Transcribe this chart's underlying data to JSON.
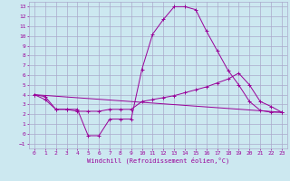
{
  "xlabel": "Windchill (Refroidissement éolien,°C)",
  "background_color": "#cce8f0",
  "grid_color": "#aaaacc",
  "line_color": "#990099",
  "xlim": [
    -0.5,
    23.5
  ],
  "ylim": [
    -1.5,
    13.5
  ],
  "xticks": [
    0,
    1,
    2,
    3,
    4,
    5,
    6,
    7,
    8,
    9,
    10,
    11,
    12,
    13,
    14,
    15,
    16,
    17,
    18,
    19,
    20,
    21,
    22,
    23
  ],
  "yticks": [
    -1,
    0,
    1,
    2,
    3,
    4,
    5,
    6,
    7,
    8,
    9,
    10,
    11,
    12,
    13
  ],
  "series1_x": [
    0,
    1,
    2,
    3,
    4,
    5,
    6,
    7,
    8,
    9,
    10,
    11,
    12,
    13,
    14,
    15,
    16,
    17,
    18,
    19,
    20,
    21,
    22,
    23
  ],
  "series1_y": [
    4.0,
    3.8,
    2.5,
    2.5,
    2.5,
    -0.2,
    -0.2,
    1.5,
    1.5,
    1.5,
    6.6,
    10.2,
    11.7,
    13.0,
    13.0,
    12.7,
    10.5,
    8.5,
    6.5,
    5.0,
    3.3,
    2.4,
    2.2,
    2.2
  ],
  "series2_x": [
    0,
    1,
    2,
    3,
    4,
    5,
    6,
    7,
    8,
    9,
    10,
    11,
    12,
    13,
    14,
    15,
    16,
    17,
    18,
    19,
    20,
    21,
    22,
    23
  ],
  "series2_y": [
    4.0,
    3.5,
    2.5,
    2.5,
    2.3,
    2.3,
    2.3,
    2.5,
    2.5,
    2.5,
    3.3,
    3.5,
    3.7,
    3.9,
    4.2,
    4.5,
    4.8,
    5.2,
    5.6,
    6.2,
    5.0,
    3.3,
    2.8,
    2.2
  ],
  "series3_x": [
    0,
    23
  ],
  "series3_y": [
    4.0,
    2.2
  ]
}
